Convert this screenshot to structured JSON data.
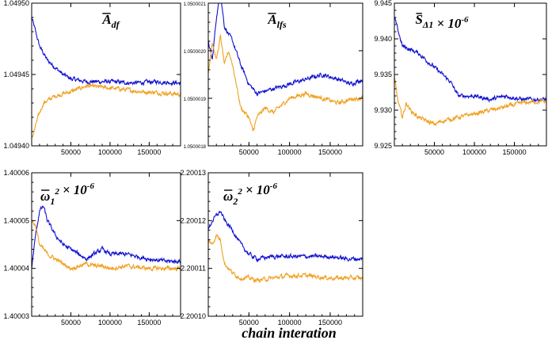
{
  "figure": {
    "xlabel": "chain interation"
  },
  "colors": {
    "series_a": "#1010d0",
    "series_b": "#f0a020",
    "frame": "#000000"
  },
  "chart_data": [
    {
      "type": "line",
      "title": "A_df",
      "title_parts": {
        "main": "A",
        "sub": "df",
        "mult": ""
      },
      "xlim": [
        0,
        190000
      ],
      "xticks": [
        50000,
        100000,
        150000
      ],
      "xticklabels": [
        "50000",
        "100000",
        "150000"
      ],
      "ylim": [
        1.0494,
        1.0495
      ],
      "yticks": [
        1.0494,
        1.04945,
        1.0495
      ],
      "yticklabels": [
        "1.04940",
        "1.04945",
        "1.04950"
      ],
      "series": [
        {
          "name": "blue chain",
          "color": "#1010d0",
          "x": [
            0,
            5000,
            10000,
            20000,
            30000,
            40000,
            50000,
            70000,
            100000,
            130000,
            160000,
            190000
          ],
          "y": [
            1.04949,
            1.04948,
            1.04947,
            1.04946,
            1.049455,
            1.04945,
            1.049447,
            1.049445,
            1.049445,
            1.049444,
            1.049445,
            1.049444
          ]
        },
        {
          "name": "orange chain",
          "color": "#f0a020",
          "x": [
            0,
            3000,
            8000,
            15000,
            30000,
            50000,
            70000,
            90000,
            110000,
            140000,
            170000,
            190000
          ],
          "y": [
            1.049405,
            1.04941,
            1.04942,
            1.04943,
            1.049435,
            1.049438,
            1.049442,
            1.049441,
            1.04944,
            1.049438,
            1.049437,
            1.049436
          ]
        }
      ]
    },
    {
      "type": "line",
      "title": "A_lfs",
      "title_parts": {
        "main": "A",
        "sub": "lfs",
        "mult": ""
      },
      "xlim": [
        0,
        190000
      ],
      "xticks": [
        50000,
        100000,
        150000
      ],
      "xticklabels": [
        "50000",
        "100000",
        "150000"
      ],
      "ylim": [
        1.0500018,
        1.0500021
      ],
      "yticks": [
        1.0500018,
        1.0500019,
        1.050002,
        1.0500021
      ],
      "yticklabels": [
        "1.0500018",
        "1.0500019",
        "1.0500020",
        "1.0500021"
      ],
      "series": [
        {
          "name": "blue chain",
          "color": "#1010d0",
          "x": [
            0,
            5000,
            10000,
            15000,
            20000,
            30000,
            40000,
            50000,
            60000,
            80000,
            100000,
            120000,
            140000,
            160000,
            175000,
            190000
          ],
          "y": [
            1.05000202,
            1.05000198,
            1.05000207,
            1.05000212,
            1.05000205,
            1.05000202,
            1.05000197,
            1.05000193,
            1.05000191,
            1.05000192,
            1.05000193,
            1.05000194,
            1.05000195,
            1.05000194,
            1.05000193,
            1.05000194
          ]
        },
        {
          "name": "orange chain",
          "color": "#f0a020",
          "x": [
            0,
            5000,
            10000,
            15000,
            20000,
            25000,
            30000,
            40000,
            50000,
            55000,
            60000,
            70000,
            80000,
            100000,
            120000,
            140000,
            160000,
            180000,
            190000
          ],
          "y": [
            1.05000195,
            1.05000202,
            1.05000198,
            1.05000203,
            1.05000197,
            1.050002,
            1.05000197,
            1.05000188,
            1.05000186,
            1.05000183,
            1.05000186,
            1.05000188,
            1.05000187,
            1.0500019,
            1.05000191,
            1.0500019,
            1.05000189,
            1.0500019,
            1.0500019
          ]
        }
      ]
    },
    {
      "type": "line",
      "title": "S_Δ1 × 10^-6",
      "title_parts": {
        "main": "S",
        "sub": "Δ1",
        "mult": "× 10-6"
      },
      "xlim": [
        0,
        190000
      ],
      "xticks": [
        50000,
        100000,
        150000
      ],
      "xticklabels": [
        "50000",
        "100000",
        "150000"
      ],
      "ylim": [
        9.925,
        9.945
      ],
      "yticks": [
        9.925,
        9.93,
        9.935,
        9.94,
        9.945
      ],
      "yticklabels": [
        "9.925",
        "9.930",
        "9.935",
        "9.940",
        "9.945"
      ],
      "series": [
        {
          "name": "blue chain",
          "color": "#1010d0",
          "x": [
            0,
            5000,
            10000,
            20000,
            30000,
            40000,
            50000,
            60000,
            70000,
            80000,
            100000,
            120000,
            140000,
            160000,
            175000,
            190000
          ],
          "y": [
            9.943,
            9.941,
            9.939,
            9.9385,
            9.938,
            9.937,
            9.936,
            9.935,
            9.934,
            9.932,
            9.932,
            9.9315,
            9.932,
            9.9315,
            9.9315,
            9.9315
          ]
        },
        {
          "name": "orange chain",
          "color": "#f0a020",
          "x": [
            0,
            5000,
            10000,
            15000,
            20000,
            30000,
            40000,
            50000,
            60000,
            80000,
            100000,
            120000,
            140000,
            160000,
            175000,
            190000
          ],
          "y": [
            9.9345,
            9.931,
            9.929,
            9.931,
            9.93,
            9.929,
            9.9285,
            9.928,
            9.9285,
            9.929,
            9.9295,
            9.93,
            9.9305,
            9.931,
            9.9312,
            9.9312
          ]
        }
      ]
    },
    {
      "type": "line",
      "title": "ω1^2 × 10^-6",
      "title_parts": {
        "main": "ω",
        "sub": "1",
        "sup": "2",
        "mult": "× 10-6"
      },
      "xlim": [
        0,
        190000
      ],
      "xticks": [
        50000,
        100000,
        150000
      ],
      "xticklabels": [
        "50000",
        "100000",
        "150000"
      ],
      "ylim": [
        1.40003,
        1.40006
      ],
      "yticks": [
        1.40003,
        1.40004,
        1.40005,
        1.40006
      ],
      "yticklabels": [
        "1.40003",
        "1.40004",
        "1.40005",
        "1.40006"
      ],
      "series": [
        {
          "name": "blue chain",
          "color": "#1010d0",
          "x": [
            0,
            5000,
            10000,
            15000,
            20000,
            30000,
            40000,
            50000,
            60000,
            70000,
            80000,
            90000,
            100000,
            120000,
            150000,
            170000,
            190000
          ],
          "y": [
            1.40004,
            1.400047,
            1.400052,
            1.400053,
            1.40005,
            1.400047,
            1.400045,
            1.400044,
            1.400043,
            1.400042,
            1.400043,
            1.400044,
            1.400043,
            1.400043,
            1.400042,
            1.4000415,
            1.4000415
          ]
        },
        {
          "name": "orange chain",
          "color": "#f0a020",
          "x": [
            0,
            5000,
            10000,
            15000,
            20000,
            30000,
            40000,
            50000,
            60000,
            70000,
            80000,
            90000,
            100000,
            120000,
            150000,
            170000,
            190000
          ],
          "y": [
            1.40005,
            1.400049,
            1.400045,
            1.400044,
            1.400043,
            1.400042,
            1.400041,
            1.40004,
            1.4000405,
            1.400041,
            1.4000405,
            1.4000405,
            1.40004,
            1.4000405,
            1.40004,
            1.40004,
            1.40004
          ]
        }
      ]
    },
    {
      "type": "line",
      "title": "ω2^2 × 10^-6",
      "title_parts": {
        "main": "ω",
        "sub": "2",
        "sup": "2",
        "mult": "× 10-6"
      },
      "xlim": [
        0,
        190000
      ],
      "xticks": [
        50000,
        100000,
        150000
      ],
      "xticklabels": [
        "50000",
        "100000",
        "150000"
      ],
      "ylim": [
        2.2001,
        2.20013
      ],
      "yticks": [
        2.2001,
        2.20011,
        2.20012,
        2.20013
      ],
      "yticklabels": [
        "2.20010",
        "2.20011",
        "2.20012",
        "2.20013"
      ],
      "series": [
        {
          "name": "blue chain",
          "color": "#1010d0",
          "x": [
            0,
            5000,
            10000,
            15000,
            20000,
            30000,
            40000,
            50000,
            60000,
            80000,
            100000,
            120000,
            150000,
            170000,
            190000
          ],
          "y": [
            2.200118,
            2.20012,
            2.200121,
            2.200122,
            2.20012,
            2.200118,
            2.200115,
            2.200113,
            2.200112,
            2.2001125,
            2.2001125,
            2.2001125,
            2.2001125,
            2.200112,
            2.200112
          ]
        },
        {
          "name": "orange chain",
          "color": "#f0a020",
          "x": [
            0,
            5000,
            10000,
            15000,
            20000,
            30000,
            40000,
            50000,
            60000,
            80000,
            100000,
            120000,
            150000,
            170000,
            190000
          ],
          "y": [
            2.200116,
            2.200115,
            2.200117,
            2.200116,
            2.200111,
            2.200109,
            2.200108,
            2.200108,
            2.2001075,
            2.200108,
            2.2001085,
            2.2001085,
            2.200108,
            2.200108,
            2.200108
          ]
        }
      ]
    }
  ]
}
